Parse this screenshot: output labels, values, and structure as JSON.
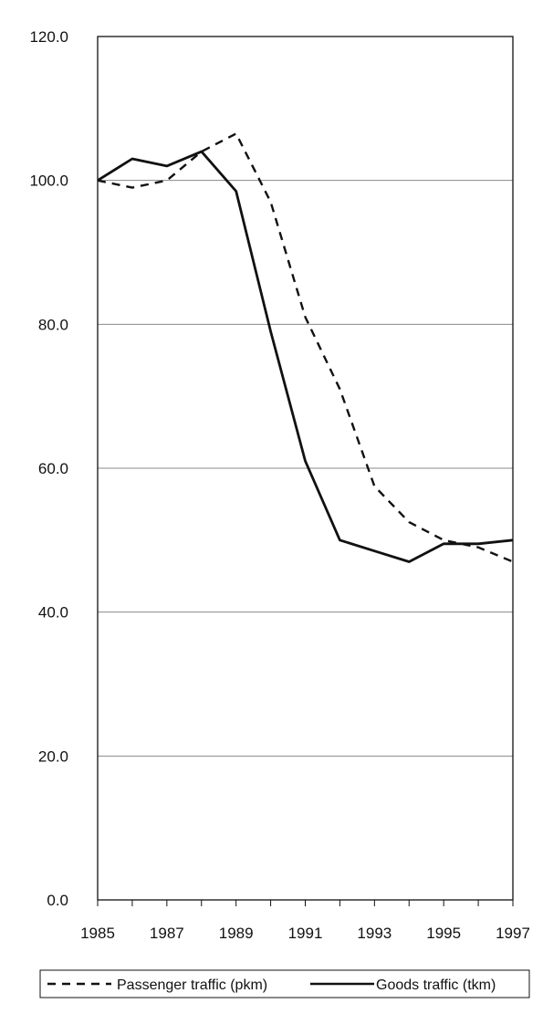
{
  "chart_data": {
    "type": "line",
    "title": "",
    "xlabel": "",
    "ylabel": "",
    "ylim": [
      0,
      120
    ],
    "yticks": [
      0,
      20,
      40,
      60,
      80,
      100,
      120
    ],
    "ytick_labels": [
      "0.0",
      "20.0",
      "40.0",
      "60.0",
      "80.0",
      "100.0",
      "120.0"
    ],
    "xlim": [
      1985,
      1997
    ],
    "xticks": [
      1985,
      1987,
      1989,
      1991,
      1993,
      1995,
      1997
    ],
    "xtick_labels": [
      "1985",
      "1987",
      "1989",
      "1991",
      "1993",
      "1995",
      "1997"
    ],
    "grid": "horizontal",
    "legend_position": "bottom",
    "x": [
      1985,
      1986,
      1987,
      1988,
      1989,
      1990,
      1991,
      1992,
      1993,
      1994,
      1995,
      1996,
      1997
    ],
    "series": [
      {
        "name": "Passenger traffic (pkm)",
        "style": "dashed",
        "color": "#111111",
        "values": [
          100.0,
          99.0,
          100.0,
          104.0,
          106.5,
          97.0,
          81.0,
          71.0,
          57.5,
          52.5,
          50.0,
          49.0,
          47.0
        ]
      },
      {
        "name": "Goods traffic (tkm)",
        "style": "solid",
        "color": "#111111",
        "values": [
          100.0,
          103.0,
          102.0,
          104.0,
          98.5,
          79.0,
          61.0,
          50.0,
          48.5,
          47.0,
          49.5,
          49.5,
          50.0
        ]
      }
    ]
  }
}
